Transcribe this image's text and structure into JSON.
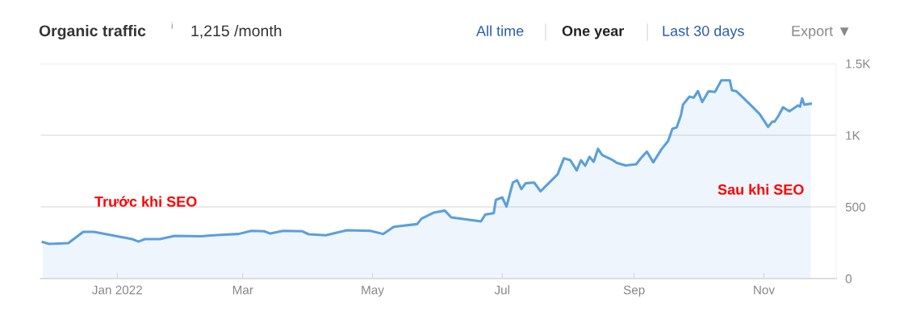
{
  "chart_data": {
    "type": "area",
    "title": "Organic traffic",
    "subtitle": "1,215 /month",
    "annotations": [
      "i",
      "All time",
      "One year",
      "Last 30 days",
      "Export ▼",
      "Trước khi SEO",
      "Sau khi SEO"
    ],
    "x": [
      "2021-11-27",
      "2021-11-30",
      "2021-12-09",
      "2021-12-16",
      "2021-12-21",
      "2021-12-29",
      "2022-01-08",
      "2022-01-11",
      "2022-01-14",
      "2022-01-21",
      "2022-01-28",
      "2022-02-09",
      "2022-02-17",
      "2022-02-27",
      "2022-03-05",
      "2022-03-11",
      "2022-03-14",
      "2022-03-20",
      "2022-03-29",
      "2022-04-01",
      "2022-04-09",
      "2022-04-19",
      "2022-04-30",
      "2022-05-06",
      "2022-05-11",
      "2022-05-22",
      "2022-05-24",
      "2022-05-30",
      "2022-06-04",
      "2022-06-07",
      "2022-06-21",
      "2022-06-23",
      "2022-06-27",
      "2022-06-28",
      "2022-07-01",
      "2022-07-03",
      "2022-07-06",
      "2022-07-08",
      "2022-07-10",
      "2022-07-12",
      "2022-07-16",
      "2022-07-19",
      "2022-07-27",
      "2022-07-30",
      "2022-08-02",
      "2022-08-05",
      "2022-08-07",
      "2022-08-09",
      "2022-08-11",
      "2022-08-13",
      "2022-08-15",
      "2022-08-17",
      "2022-08-21",
      "2022-08-24",
      "2022-08-28",
      "2022-09-02",
      "2022-09-04",
      "2022-09-07",
      "2022-09-10",
      "2022-09-14",
      "2022-09-17",
      "2022-09-19",
      "2022-09-21",
      "2022-09-23",
      "2022-09-24",
      "2022-09-27",
      "2022-09-29",
      "2022-10-01",
      "2022-10-03",
      "2022-10-06",
      "2022-10-09",
      "2022-10-12",
      "2022-10-16",
      "2022-10-17",
      "2022-10-19",
      "2022-10-25",
      "2022-10-30",
      "2022-11-03",
      "2022-11-05",
      "2022-11-06",
      "2022-11-08",
      "2022-11-10",
      "2022-11-13",
      "2022-11-17",
      "2022-11-18",
      "2022-11-19",
      "2022-11-20",
      "2022-11-23"
    ],
    "series": [
      {
        "color": "#5a9fdd",
        "values": [
          255,
          242,
          247,
          326,
          326,
          303,
          275,
          258,
          275,
          275,
          298,
          295,
          303,
          311,
          333,
          330,
          314,
          333,
          330,
          309,
          302,
          337,
          333,
          311,
          361,
          380,
          418,
          461,
          474,
          427,
          399,
          446,
          457,
          549,
          566,
          502,
          670,
          686,
          624,
          665,
          670,
          609,
          727,
          839,
          826,
          755,
          826,
          787,
          849,
          815,
          905,
          862,
          834,
          806,
          789,
          798,
          837,
          886,
          811,
          905,
          961,
          1045,
          1055,
          1139,
          1214,
          1270,
          1262,
          1308,
          1232,
          1308,
          1302,
          1383,
          1383,
          1313,
          1308,
          1223,
          1148,
          1058,
          1096,
          1094,
          1139,
          1195,
          1167,
          1208,
          1200,
          1257,
          1214,
          1220
        ]
      }
    ],
    "xlim": [
      "2021-11-26",
      "2022-12-05"
    ],
    "ylim": [
      0,
      1500
    ],
    "yticks": [
      0,
      500,
      {
        "value": 1000,
        "label": "1K"
      },
      {
        "value": 1500,
        "label": "1.5K"
      }
    ],
    "xticks": [
      {
        "value": "2022-01-01",
        "label": "Jan 2022"
      },
      {
        "value": "2022-03-01",
        "label": "Mar"
      },
      {
        "value": "2022-05-01",
        "label": "May"
      },
      {
        "value": "2022-07-01",
        "label": "Jul"
      },
      {
        "value": "2022-09-01",
        "label": "Sep"
      },
      {
        "value": "2022-11-01",
        "label": "Nov"
      }
    ],
    "grid": "y"
  }
}
